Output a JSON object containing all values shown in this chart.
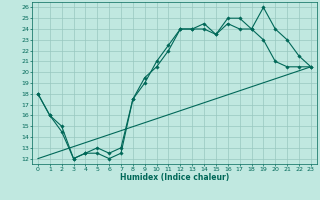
{
  "xlabel": "Humidex (Indice chaleur)",
  "bg_color": "#c0e8e0",
  "grid_color": "#98c8c0",
  "line_color": "#006858",
  "xlim": [
    -0.5,
    23.5
  ],
  "ylim": [
    11.5,
    26.5
  ],
  "xticks": [
    0,
    1,
    2,
    3,
    4,
    5,
    6,
    7,
    8,
    9,
    10,
    11,
    12,
    13,
    14,
    15,
    16,
    17,
    18,
    19,
    20,
    21,
    22,
    23
  ],
  "yticks": [
    12,
    13,
    14,
    15,
    16,
    17,
    18,
    19,
    20,
    21,
    22,
    23,
    24,
    25,
    26
  ],
  "line1_x": [
    0,
    1,
    2,
    3,
    4,
    5,
    6,
    7,
    8,
    9,
    10,
    11,
    12,
    13,
    14,
    15,
    16,
    17,
    18,
    19,
    20,
    21,
    22,
    23
  ],
  "line1_y": [
    18,
    16,
    14.5,
    12,
    12.5,
    13,
    12.5,
    13,
    17.5,
    19.5,
    20.5,
    22,
    24,
    24,
    24.5,
    23.5,
    24.5,
    24,
    24,
    23,
    21,
    20.5,
    20.5,
    20.5
  ],
  "line2_x": [
    0,
    1,
    2,
    3,
    4,
    5,
    6,
    7,
    8,
    9,
    10,
    11,
    12,
    13,
    14,
    15,
    16,
    17,
    18,
    19,
    20,
    21,
    22,
    23
  ],
  "line2_y": [
    18,
    16,
    15,
    12,
    12.5,
    12.5,
    12,
    12.5,
    17.5,
    19,
    21,
    22.5,
    24,
    24,
    24,
    23.5,
    25,
    25,
    24,
    26,
    24,
    23,
    21.5,
    20.5
  ],
  "line3_x": [
    0,
    23
  ],
  "line3_y": [
    12,
    20.5
  ]
}
